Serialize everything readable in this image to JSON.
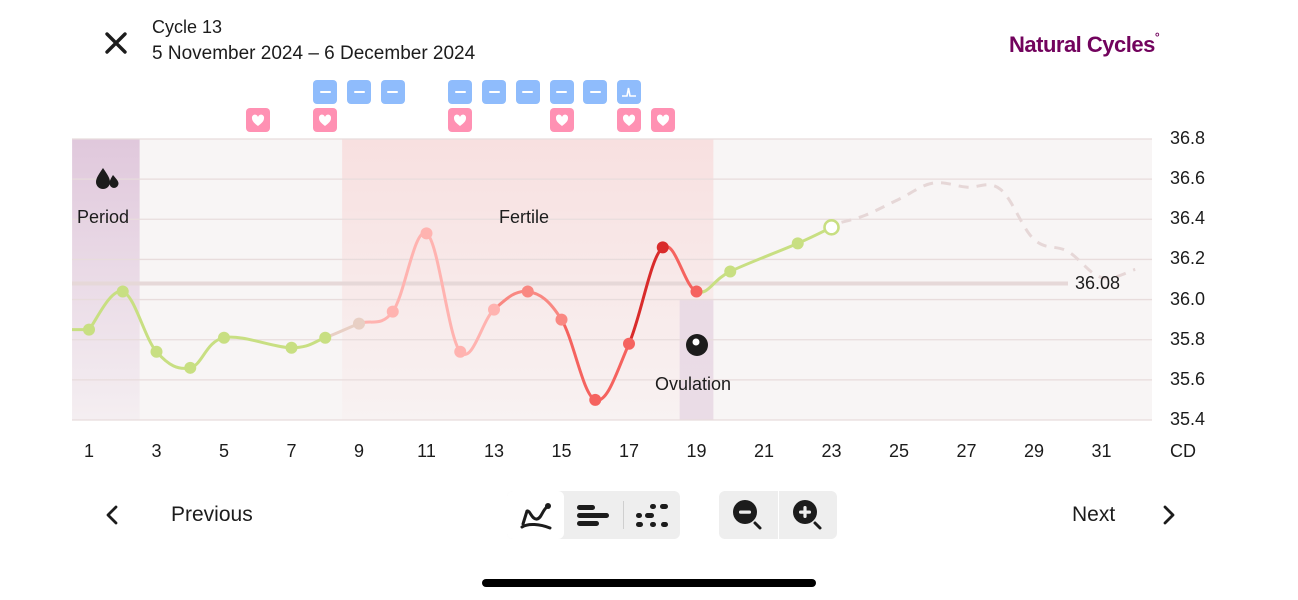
{
  "header": {
    "close_icon": "close-icon",
    "title": "Cycle 13",
    "date_range": "5 November 2024 – 6 December 2024",
    "brand": "Natural Cycles",
    "brand_mark": "°"
  },
  "colors": {
    "brand": "#72035d",
    "period_band": "#e0c8dc",
    "fertile_band": "#f8e0e0",
    "ovulation_band": "#e8d8e4",
    "plot_bg": "#f8f5f5",
    "gridline": "#e8dcdc",
    "green_line": "#c8df82",
    "light_pink_line": "#ffb3b0",
    "mid_red_line": "#f5635f",
    "dark_red_line": "#d92b2b",
    "prediction_dashed": "#e6d7d7",
    "blue_tag": "#8fbcfc",
    "pink_tag": "#ff91b3"
  },
  "tags": {
    "blue_row": [
      {
        "day": 8,
        "icon": "dash-icon"
      },
      {
        "day": 9,
        "icon": "dash-icon"
      },
      {
        "day": 10,
        "icon": "dash-icon"
      },
      {
        "day": 12,
        "icon": "dash-icon"
      },
      {
        "day": 13,
        "icon": "dash-icon"
      },
      {
        "day": 14,
        "icon": "dash-icon"
      },
      {
        "day": 15,
        "icon": "dash-icon"
      },
      {
        "day": 16,
        "icon": "dash-icon"
      },
      {
        "day": 17,
        "icon": "lh-peak-icon"
      }
    ],
    "pink_row": [
      {
        "day": 6,
        "icon": "heart-icon"
      },
      {
        "day": 8,
        "icon": "heart-icon"
      },
      {
        "day": 12,
        "icon": "heart-icon"
      },
      {
        "day": 15,
        "icon": "heart-icon"
      },
      {
        "day": 17,
        "icon": "heart-icon"
      },
      {
        "day": 18,
        "icon": "heart-icon"
      }
    ]
  },
  "bands": {
    "period": {
      "label": "Period",
      "icon": "drops-icon"
    },
    "fertile": {
      "label": "Fertile"
    },
    "ovulation": {
      "label": "Ovulation",
      "icon": "ovulation-icon"
    }
  },
  "chart_data": {
    "type": "line",
    "title": "",
    "xlabel": "CD",
    "ylabel": "",
    "xlim": [
      0.5,
      32.5
    ],
    "ylim": [
      35.4,
      36.8
    ],
    "x_ticks": [
      "1",
      "3",
      "5",
      "7",
      "9",
      "11",
      "13",
      "15",
      "17",
      "19",
      "21",
      "23",
      "25",
      "27",
      "29",
      "31"
    ],
    "x_axis_unit": "CD",
    "y_ticks": [
      "36.8",
      "36.6",
      "36.4",
      "36.2",
      "36.0",
      "35.8",
      "35.6",
      "35.4"
    ],
    "grid": true,
    "coverline": {
      "value": 36.08,
      "label": "36.08"
    },
    "bands": [
      {
        "name": "Period",
        "from_day": 0.5,
        "to_day": 2.5
      },
      {
        "name": "Fertile",
        "from_day": 8.5,
        "to_day": 19.5
      },
      {
        "name": "Ovulation",
        "from_day": 18.5,
        "to_day": 19.5
      }
    ],
    "series": [
      {
        "name": "Temperature",
        "x": [
          1,
          2,
          3,
          4,
          5,
          7,
          8,
          9,
          10,
          11,
          12,
          13,
          14,
          15,
          16,
          17,
          18,
          19,
          20,
          22,
          23
        ],
        "values": [
          35.85,
          36.04,
          35.74,
          35.66,
          35.81,
          35.76,
          35.81,
          35.88,
          35.94,
          36.33,
          35.74,
          35.95,
          36.04,
          35.9,
          35.5,
          35.78,
          36.26,
          36.04,
          36.14,
          36.28,
          36.36
        ],
        "last_point_hollow": true
      },
      {
        "name": "Prediction",
        "style": "dashed",
        "x": [
          23,
          24,
          25,
          26,
          27,
          28,
          29,
          30,
          31,
          32
        ],
        "values": [
          36.36,
          36.42,
          36.5,
          36.58,
          36.56,
          36.55,
          36.3,
          36.24,
          36.11,
          36.15
        ]
      }
    ]
  },
  "footer": {
    "previous_label": "Previous",
    "next_label": "Next",
    "view_modes": [
      {
        "name": "graph",
        "icon": "line-chart-icon",
        "active": true
      },
      {
        "name": "list",
        "icon": "bars-icon",
        "active": false
      },
      {
        "name": "dots",
        "icon": "dots-icon",
        "active": false
      }
    ],
    "zoom_out_icon": "zoom-out-icon",
    "zoom_in_icon": "zoom-in-icon"
  }
}
